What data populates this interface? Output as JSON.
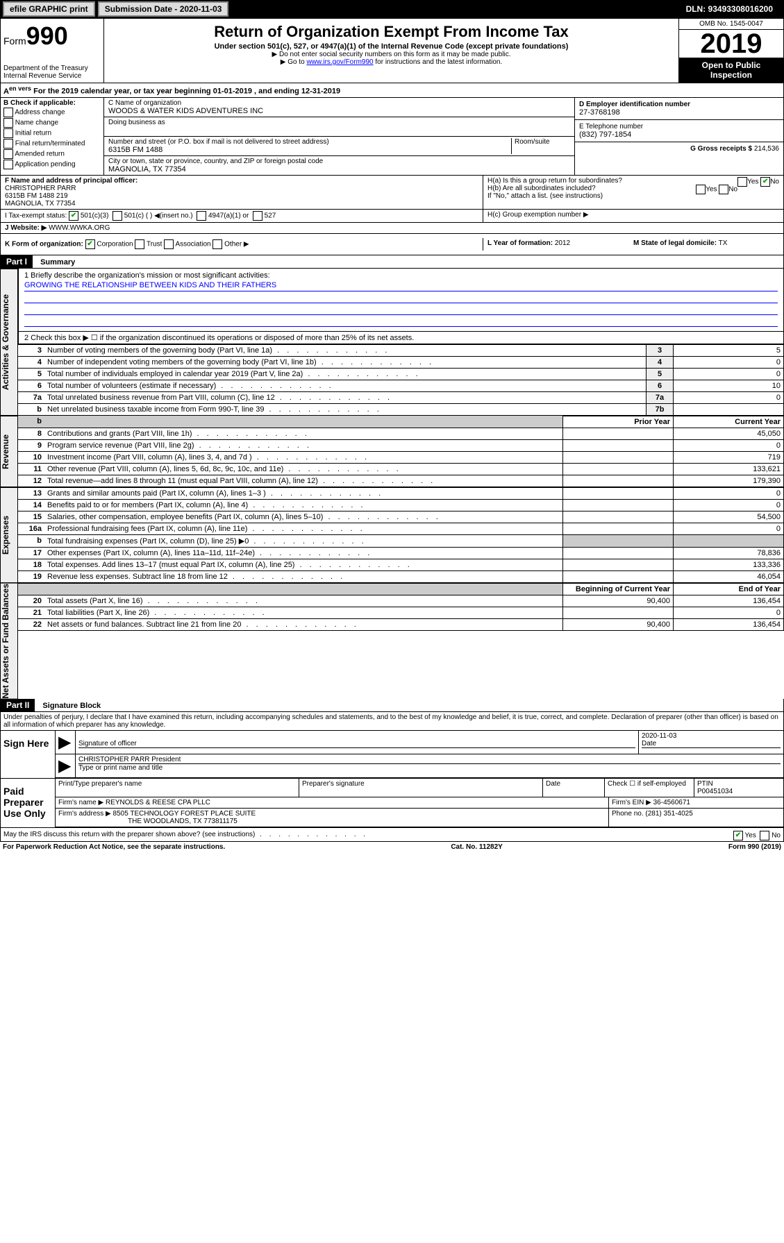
{
  "top_bar": {
    "efile": "efile GRAPHIC print",
    "sub_date_label": "Submission Date - 2020-11-03",
    "dln": "DLN: 93493308016200"
  },
  "header": {
    "form_word": "Form",
    "form_number": "990",
    "dept": "Department of the Treasury\nInternal Revenue Service",
    "title": "Return of Organization Exempt From Income Tax",
    "subtitle": "Under section 501(c), 527, or 4947(a)(1) of the Internal Revenue Code (except private foundations)",
    "note1": "▶ Do not enter social security numbers on this form as it may be made public.",
    "note2_pre": "▶ Go to ",
    "note2_link": "www.irs.gov/Form990",
    "note2_post": " for instructions and the latest information.",
    "omb": "OMB No. 1545-0047",
    "year": "2019",
    "open": "Open to Public Inspection"
  },
  "period": "For the 2019 calendar year, or tax year beginning 01-01-2019    , and ending 12-31-2019",
  "section_b": {
    "label": "B Check if applicable:",
    "items": [
      "Address change",
      "Name change",
      "Initial return",
      "Final return/terminated",
      "Amended return",
      "Application pending"
    ]
  },
  "section_c": {
    "name_label": "C Name of organization",
    "name": "WOODS & WATER KIDS ADVENTURES INC",
    "dba_label": "Doing business as",
    "addr_label": "Number and street (or P.O. box if mail is not delivered to street address)",
    "room_label": "Room/suite",
    "addr": "6315B FM 1488",
    "city_label": "City or town, state or province, country, and ZIP or foreign postal code",
    "city": "MAGNOLIA, TX  77354"
  },
  "section_d": {
    "label": "D Employer identification number",
    "value": "27-3768198"
  },
  "section_e": {
    "label": "E Telephone number",
    "value": "(832) 797-1854"
  },
  "section_g": {
    "label": "G Gross receipts $",
    "value": "214,536"
  },
  "section_f": {
    "label": "F  Name and address of principal officer:",
    "name": "CHRISTOPHER PARR",
    "addr1": "6315B FM 1488 219",
    "addr2": "MAGNOLIA, TX  77354"
  },
  "section_h": {
    "a": "H(a)  Is this a group return for subordinates?",
    "b": "H(b)  Are all subordinates included?",
    "b_note": "If \"No,\" attach a list. (see instructions)",
    "c": "H(c)  Group exemption number ▶",
    "yes": "Yes",
    "no": "No"
  },
  "section_i": {
    "label": "I     Tax-exempt status:",
    "opt1": "501(c)(3)",
    "opt2": "501(c) (  ) ◀(insert no.)",
    "opt3": "4947(a)(1) or",
    "opt4": "527"
  },
  "section_j": {
    "label": "J     Website: ▶",
    "value": "WWW.WWKA.ORG"
  },
  "section_k": {
    "label": "K Form of organization:",
    "opts": [
      "Corporation",
      "Trust",
      "Association",
      "Other ▶"
    ]
  },
  "section_l": {
    "label": "L Year of formation:",
    "value": "2012"
  },
  "section_m": {
    "label": "M State of legal domicile:",
    "value": "TX"
  },
  "part1": {
    "header": "Part I",
    "title": "Summary",
    "side_labels": {
      "gov": "Activities & Governance",
      "rev": "Revenue",
      "exp": "Expenses",
      "net": "Net Assets or Fund Balances"
    },
    "line1_label": "1  Briefly describe the organization's mission or most significant activities:",
    "line1_value": "GROWING THE RELATIONSHIP BETWEEN KIDS AND THEIR FATHERS",
    "line2": "2    Check this box ▶ ☐  if the organization discontinued its operations or disposed of more than 25% of its net assets.",
    "rows_gov": [
      {
        "n": "3",
        "d": "Number of voting members of the governing body (Part VI, line 1a)",
        "ln": "3",
        "v": "5"
      },
      {
        "n": "4",
        "d": "Number of independent voting members of the governing body (Part VI, line 1b)",
        "ln": "4",
        "v": "0"
      },
      {
        "n": "5",
        "d": "Total number of individuals employed in calendar year 2019 (Part V, line 2a)",
        "ln": "5",
        "v": "0"
      },
      {
        "n": "6",
        "d": "Total number of volunteers (estimate if necessary)",
        "ln": "6",
        "v": "10"
      },
      {
        "n": "7a",
        "d": "Total unrelated business revenue from Part VIII, column (C), line 12",
        "ln": "7a",
        "v": "0"
      },
      {
        "n": "b",
        "d": "Net unrelated business taxable income from Form 990-T, line 39",
        "ln": "7b",
        "v": ""
      }
    ],
    "col_headers": {
      "prior": "Prior Year",
      "current": "Current Year"
    },
    "rows_rev": [
      {
        "n": "8",
        "d": "Contributions and grants (Part VIII, line 1h)",
        "p": "",
        "c": "45,050"
      },
      {
        "n": "9",
        "d": "Program service revenue (Part VIII, line 2g)",
        "p": "",
        "c": "0"
      },
      {
        "n": "10",
        "d": "Investment income (Part VIII, column (A), lines 3, 4, and 7d )",
        "p": "",
        "c": "719"
      },
      {
        "n": "11",
        "d": "Other revenue (Part VIII, column (A), lines 5, 6d, 8c, 9c, 10c, and 11e)",
        "p": "",
        "c": "133,621"
      },
      {
        "n": "12",
        "d": "Total revenue—add lines 8 through 11 (must equal Part VIII, column (A), line 12)",
        "p": "",
        "c": "179,390"
      }
    ],
    "rows_exp": [
      {
        "n": "13",
        "d": "Grants and similar amounts paid (Part IX, column (A), lines 1–3 )",
        "p": "",
        "c": "0"
      },
      {
        "n": "14",
        "d": "Benefits paid to or for members (Part IX, column (A), line 4)",
        "p": "",
        "c": "0"
      },
      {
        "n": "15",
        "d": "Salaries, other compensation, employee benefits (Part IX, column (A), lines 5–10)",
        "p": "",
        "c": "54,500"
      },
      {
        "n": "16a",
        "d": "Professional fundraising fees (Part IX, column (A), line 11e)",
        "p": "",
        "c": "0"
      },
      {
        "n": "b",
        "d": "Total fundraising expenses (Part IX, column (D), line 25) ▶0",
        "p": "grey",
        "c": "grey"
      },
      {
        "n": "17",
        "d": "Other expenses (Part IX, column (A), lines 11a–11d, 11f–24e)",
        "p": "",
        "c": "78,836"
      },
      {
        "n": "18",
        "d": "Total expenses. Add lines 13–17 (must equal Part IX, column (A), line 25)",
        "p": "",
        "c": "133,336"
      },
      {
        "n": "19",
        "d": "Revenue less expenses. Subtract line 18 from line 12",
        "p": "",
        "c": "46,054"
      }
    ],
    "net_headers": {
      "begin": "Beginning of Current Year",
      "end": "End of Year"
    },
    "rows_net": [
      {
        "n": "20",
        "d": "Total assets (Part X, line 16)",
        "p": "90,400",
        "c": "136,454"
      },
      {
        "n": "21",
        "d": "Total liabilities (Part X, line 26)",
        "p": "",
        "c": "0"
      },
      {
        "n": "22",
        "d": "Net assets or fund balances. Subtract line 21 from line 20",
        "p": "90,400",
        "c": "136,454"
      }
    ]
  },
  "part2": {
    "header": "Part II",
    "title": "Signature Block",
    "declaration": "Under penalties of perjury, I declare that I have examined this return, including accompanying schedules and statements, and to the best of my knowledge and belief, it is true, correct, and complete. Declaration of preparer (other than officer) is based on all information of which preparer has any knowledge.",
    "sign_here": "Sign Here",
    "sig_officer": "Signature of officer",
    "date_label": "Date",
    "date_value": "2020-11-03",
    "officer_name": "CHRISTOPHER PARR President",
    "type_name": "Type or print name and title",
    "paid_prep": "Paid Preparer Use Only",
    "print_name_label": "Print/Type preparer's name",
    "prep_sig_label": "Preparer's signature",
    "check_self": "Check ☐ if self-employed",
    "ptin_label": "PTIN",
    "ptin": "P00451034",
    "firm_name_label": "Firm's name    ▶",
    "firm_name": "REYNOLDS & REESE CPA PLLC",
    "firm_ein_label": "Firm's EIN ▶",
    "firm_ein": "36-4560671",
    "firm_addr_label": "Firm's address ▶",
    "firm_addr": "8505 TECHNOLOGY FOREST PLACE SUITE",
    "firm_city": "THE WOODLANDS, TX  773811175",
    "phone_label": "Phone no.",
    "phone": "(281) 351-4025",
    "discuss": "May the IRS discuss this return with the preparer shown above? (see instructions)",
    "yes": "Yes",
    "no": "No"
  },
  "footer": {
    "left": "For Paperwork Reduction Act Notice, see the separate instructions.",
    "mid": "Cat. No. 11282Y",
    "right": "Form 990 (2019)"
  }
}
